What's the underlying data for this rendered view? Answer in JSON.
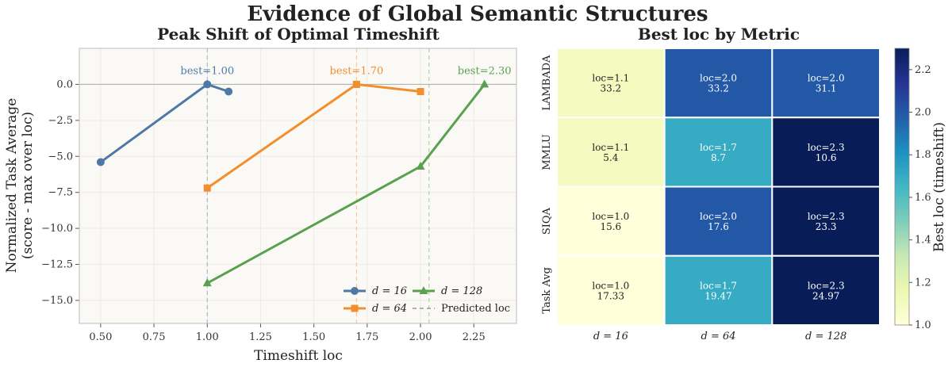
{
  "figure_title": "Evidence of Global Semantic Structures",
  "chart_data": [
    {
      "type": "line",
      "title": "Peak Shift of Optimal Timeshift",
      "xlabel": "Timeshift loc",
      "ylabel_line1": "Normalized Task Average",
      "ylabel_line2": "(score - max over loc)",
      "xlim": [
        0.4,
        2.45
      ],
      "ylim": [
        -16.6,
        2.5
      ],
      "xticks": [
        "0.50",
        "0.75",
        "1.00",
        "1.25",
        "1.50",
        "1.75",
        "2.00",
        "2.25"
      ],
      "xtick_values": [
        0.5,
        0.75,
        1.0,
        1.25,
        1.5,
        1.75,
        2.0,
        2.25
      ],
      "yticks": [
        "0.0",
        "−2.5",
        "−5.0",
        "−7.5",
        "−10.0",
        "−12.5",
        "−15.0"
      ],
      "ytick_values": [
        0,
        -2.5,
        -5,
        -7.5,
        -10,
        -12.5,
        -15
      ],
      "grid": true,
      "legend_position": "lower-right",
      "series": [
        {
          "name": "d = 16",
          "color": "#4e79a7",
          "marker": "circle",
          "x": [
            0.5,
            1.0,
            1.1
          ],
          "y": [
            -5.4,
            0.0,
            -0.5
          ],
          "best": 1.0,
          "best_label": "best=1.00",
          "predicted": 1.0
        },
        {
          "name": "d = 64",
          "color": "#f28e2b",
          "marker": "square",
          "x": [
            1.0,
            1.7,
            2.0
          ],
          "y": [
            -7.2,
            0.0,
            -0.5
          ],
          "best": 1.7,
          "best_label": "best=1.70",
          "predicted": 1.7
        },
        {
          "name": "d = 128",
          "color": "#59a14f",
          "marker": "triangle",
          "x": [
            1.0,
            2.0,
            2.3
          ],
          "y": [
            -13.8,
            -5.7,
            0.0
          ],
          "best": 2.3,
          "best_label": "best=2.30",
          "predicted": 2.04
        }
      ],
      "legend_predicted": "Predicted loc"
    },
    {
      "type": "heatmap",
      "title": "Best loc by Metric",
      "rows": [
        "LAMBADA",
        "MMLU",
        "SIQA",
        "Task Avg"
      ],
      "cols": [
        "d = 16",
        "d = 64",
        "d = 128"
      ],
      "cells": [
        [
          {
            "loc": 1.1,
            "line1": "loc=1.1",
            "line2": "33.2"
          },
          {
            "loc": 2.0,
            "line1": "loc=2.0",
            "line2": "33.2"
          },
          {
            "loc": 2.0,
            "line1": "loc=2.0",
            "line2": "31.1"
          }
        ],
        [
          {
            "loc": 1.1,
            "line1": "loc=1.1",
            "line2": "5.4"
          },
          {
            "loc": 1.7,
            "line1": "loc=1.7",
            "line2": "8.7"
          },
          {
            "loc": 2.3,
            "line1": "loc=2.3",
            "line2": "10.6"
          }
        ],
        [
          {
            "loc": 1.0,
            "line1": "loc=1.0",
            "line2": "15.6"
          },
          {
            "loc": 2.0,
            "line1": "loc=2.0",
            "line2": "17.6"
          },
          {
            "loc": 2.3,
            "line1": "loc=2.3",
            "line2": "23.3"
          }
        ],
        [
          {
            "loc": 1.0,
            "line1": "loc=1.0",
            "line2": "17.33"
          },
          {
            "loc": 1.7,
            "line1": "loc=1.7",
            "line2": "19.47"
          },
          {
            "loc": 2.3,
            "line1": "loc=2.3",
            "line2": "24.97"
          }
        ]
      ],
      "colorbar_label": "Best loc (timeshift)",
      "colorbar_range": [
        1.0,
        2.3
      ],
      "colorbar_ticks": [
        "1.0",
        "1.2",
        "1.4",
        "1.6",
        "1.8",
        "2.0",
        "2.2"
      ],
      "colorbar_tick_values": [
        1.0,
        1.2,
        1.4,
        1.6,
        1.8,
        2.0,
        2.2
      ],
      "colormap": "YlGnBu"
    }
  ]
}
